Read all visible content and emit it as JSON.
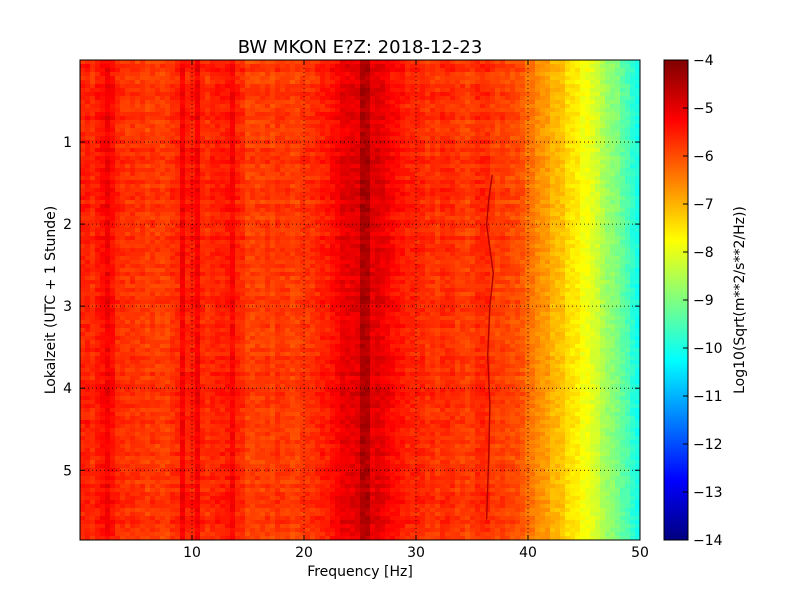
{
  "chart_data": {
    "type": "heatmap",
    "title": "BW MKON E?Z: 2018-12-23",
    "xlabel": "Frequency [Hz]",
    "ylabel": "Lokalzeit (UTC + 1 Stunde)",
    "colorbar_label": "Log10(Sqrt(m**2/s**2/Hz))",
    "colormap": "jet",
    "xlim": [
      0,
      50
    ],
    "ylim": [
      5.85,
      0
    ],
    "y_inverted": true,
    "clim": [
      -14,
      -4
    ],
    "grid": true,
    "x_ticks": [
      10,
      20,
      30,
      40,
      50
    ],
    "x_tick_labels": [
      "10",
      "20",
      "30",
      "40",
      "50"
    ],
    "y_ticks": [
      1,
      2,
      3,
      4,
      5
    ],
    "y_tick_labels": [
      "1",
      "2",
      "3",
      "4",
      "5"
    ],
    "colorbar_ticks": [
      -4,
      -5,
      -6,
      -7,
      -8,
      -9,
      -10,
      -11,
      -12,
      -13,
      -14
    ],
    "colorbar_tick_labels": [
      "−4",
      "−5",
      "−6",
      "−7",
      "−8",
      "−9",
      "−10",
      "−11",
      "−12",
      "−13",
      "−14"
    ],
    "frequency_profile": {
      "frequency_hz": [
        0,
        1,
        2,
        3,
        4,
        5,
        6,
        7,
        8,
        9,
        10,
        11,
        12,
        13,
        14,
        15,
        16,
        17,
        18,
        19,
        20,
        21,
        22,
        23,
        24,
        25,
        26,
        27,
        28,
        29,
        30,
        31,
        32,
        33,
        34,
        35,
        36,
        37,
        38,
        39,
        40,
        41,
        42,
        43,
        44,
        45,
        46,
        47,
        48,
        49,
        50
      ],
      "log10_amplitude": [
        -5.5,
        -5.6,
        -5.4,
        -5.7,
        -5.6,
        -5.8,
        -5.8,
        -5.8,
        -5.8,
        -5.6,
        -5.5,
        -5.7,
        -5.6,
        -5.5,
        -5.6,
        -5.8,
        -5.8,
        -5.8,
        -5.8,
        -5.8,
        -5.7,
        -5.6,
        -5.5,
        -5.2,
        -5.0,
        -4.9,
        -4.9,
        -5.1,
        -5.3,
        -5.5,
        -5.6,
        -5.7,
        -5.7,
        -5.7,
        -5.8,
        -5.8,
        -5.6,
        -5.8,
        -5.9,
        -6.0,
        -6.3,
        -6.6,
        -6.9,
        -7.2,
        -7.5,
        -7.8,
        -8.2,
        -8.6,
        -9.1,
        -9.6,
        -10.1
      ]
    },
    "vertical_features_hz": [
      2.6,
      9.2,
      10.5,
      13.6,
      25.5
    ],
    "drift_line": {
      "frequency_hz": [
        36.8,
        36.5,
        36.3,
        36.6,
        36.9,
        36.6,
        36.4,
        36.6,
        36.5,
        36.3
      ],
      "local_time_h": [
        1.4,
        1.7,
        2.0,
        2.3,
        2.6,
        3.0,
        3.6,
        4.2,
        4.8,
        5.6
      ]
    }
  }
}
